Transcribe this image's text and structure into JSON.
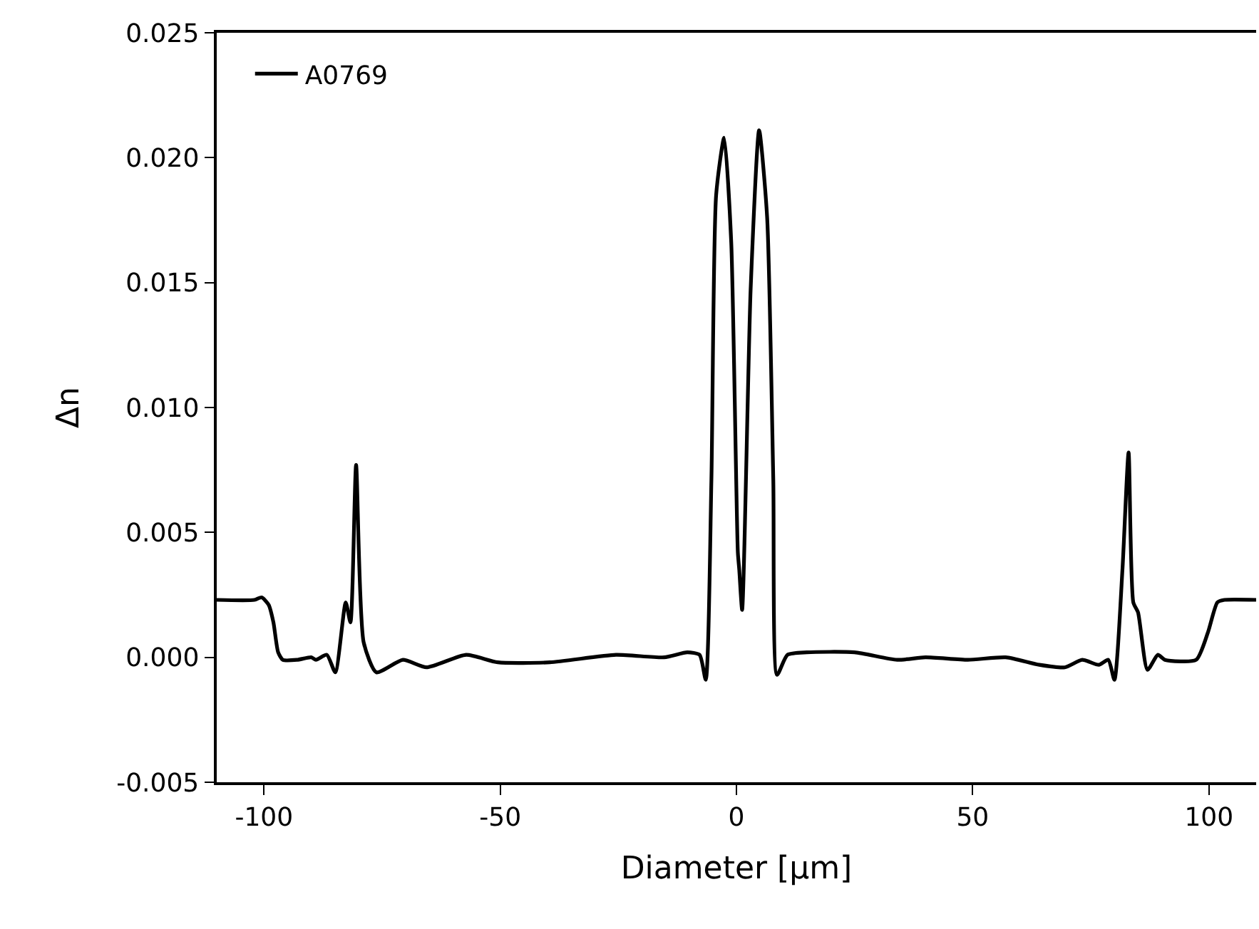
{
  "chart_data": {
    "type": "line",
    "xlabel": "Diameter [μm]",
    "ylabel": "Δn",
    "x": [
      -110,
      -102,
      -100.5,
      -99,
      -98,
      -97,
      -96,
      -93,
      -90,
      -89,
      -86.7,
      -84.9,
      -82.7,
      -81.7,
      -80.5,
      -78.9,
      -76.2,
      -70.6,
      -65.6,
      -57.2,
      -50.5,
      -39.5,
      -25.5,
      -15.3,
      -10.4,
      -7.8,
      -6.5,
      -5.3,
      -4.3,
      -2.6,
      -1.1,
      0.3,
      0.6,
      1.2,
      3.0,
      4.8,
      6.5,
      7.8,
      8.6,
      10.8,
      14.9,
      25,
      34,
      40,
      49,
      57,
      64.1,
      69.5,
      73.2,
      76.7,
      78.7,
      80.0,
      81.7,
      83.0,
      84.0,
      85.0,
      87.0,
      89.2,
      90.7,
      97.3,
      99.8,
      101.8,
      103.3,
      110
    ],
    "series": [
      {
        "name": "A0769",
        "color": "#000000",
        "values": [
          0.0023,
          0.0023,
          0.0024,
          0.0021,
          0.0014,
          0.0002,
          -0.0001,
          -0.0001,
          0.0,
          -0.0001,
          0.0001,
          -0.0006,
          0.0022,
          0.0014,
          0.0077,
          0.0006,
          -0.0006,
          -0.0001,
          -0.0004,
          0.0001,
          -0.0002,
          -0.0002,
          0.0001,
          0.0,
          0.0002,
          0.0001,
          -0.0009,
          0.0071,
          0.0185,
          0.0208,
          0.0166,
          0.0042,
          0.0035,
          0.0019,
          0.0147,
          0.0211,
          0.0176,
          0.0071,
          -0.0007,
          0.0001,
          0.0002,
          0.0002,
          -0.0001,
          0.0,
          -0.0001,
          0.0,
          -0.0003,
          -0.0004,
          -0.0001,
          -0.0003,
          -0.0001,
          -0.0009,
          0.0035,
          0.0082,
          0.0022,
          0.0018,
          -0.0005,
          0.0001,
          -0.0001,
          -0.0001,
          0.001,
          0.0022,
          0.0023,
          0.0023
        ]
      }
    ],
    "xlim": [
      -110,
      110
    ],
    "xticks": [
      -100,
      -50,
      0,
      50,
      100
    ],
    "ylim": [
      -0.005,
      0.025
    ],
    "yticks": [
      {
        "value": -0.005,
        "label": "-0.005"
      },
      {
        "value": 0,
        "label": "0.000"
      },
      {
        "value": 0.005,
        "label": "0.005"
      },
      {
        "value": 0.01,
        "label": "0.010"
      },
      {
        "value": 0.015,
        "label": "0.015"
      },
      {
        "value": 0.02,
        "label": "0.020"
      },
      {
        "value": 0.025,
        "label": "0.025"
      }
    ],
    "grid": false,
    "legend": "top left",
    "marker": "none",
    "line_style": "solid"
  }
}
